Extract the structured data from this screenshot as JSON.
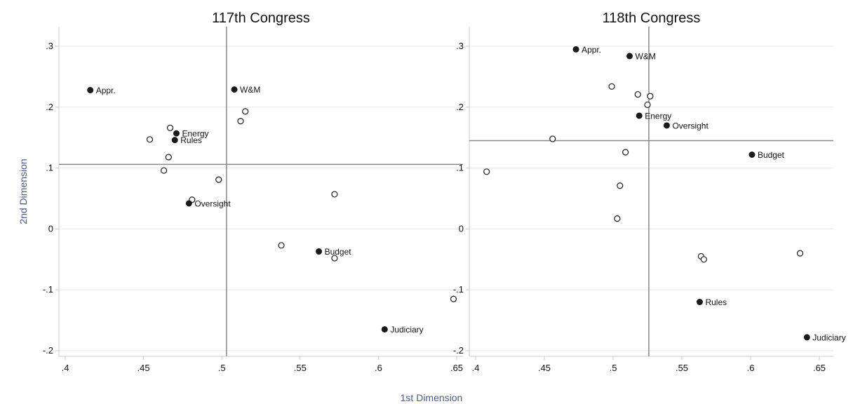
{
  "figure": {
    "xlabel": "1st Dimension",
    "ylabel": "2nd Dimension"
  },
  "colors": {
    "frame": "#c8c8c8",
    "grid": "#e6e6e6",
    "reference_line": "#888888",
    "filled_marker": "#1a1a1a",
    "hollow_marker_stroke": "#1a1a1a",
    "axis_title": "#4a5a8a"
  },
  "chart_data": [
    {
      "type": "scatter",
      "title": "117th Congress",
      "xlim": [
        0.4,
        0.65
      ],
      "ylim": [
        -0.2,
        0.3
      ],
      "x_ticks": [
        ".4",
        ".45",
        ".5",
        ".55",
        ".6",
        ".65"
      ],
      "x_tick_values": [
        0.4,
        0.45,
        0.5,
        0.55,
        0.6,
        0.65
      ],
      "y_ticks": [
        "-.2",
        "-.1",
        "0",
        ".1",
        ".2",
        ".3"
      ],
      "y_tick_values": [
        -0.2,
        -0.1,
        0,
        0.1,
        0.2,
        0.3
      ],
      "grid": true,
      "reference_lines": {
        "x": 0.503,
        "y": 0.106
      },
      "labeled_points": [
        {
          "label": "Appr.",
          "x": 0.416,
          "y": 0.228
        },
        {
          "label": "W&M",
          "x": 0.508,
          "y": 0.229
        },
        {
          "label": "Energy",
          "x": 0.471,
          "y": 0.157
        },
        {
          "label": "Rules",
          "x": 0.47,
          "y": 0.146
        },
        {
          "label": "Oversight",
          "x": 0.479,
          "y": 0.042
        },
        {
          "label": "Budget",
          "x": 0.562,
          "y": -0.037
        },
        {
          "label": "Judiciary",
          "x": 0.604,
          "y": -0.165
        }
      ],
      "unlabeled_points": [
        {
          "x": 0.454,
          "y": 0.147
        },
        {
          "x": 0.467,
          "y": 0.166
        },
        {
          "x": 0.466,
          "y": 0.118
        },
        {
          "x": 0.463,
          "y": 0.096
        },
        {
          "x": 0.498,
          "y": 0.081
        },
        {
          "x": 0.515,
          "y": 0.193
        },
        {
          "x": 0.512,
          "y": 0.177
        },
        {
          "x": 0.481,
          "y": 0.048
        },
        {
          "x": 0.572,
          "y": 0.057
        },
        {
          "x": 0.538,
          "y": -0.027
        },
        {
          "x": 0.572,
          "y": -0.048
        },
        {
          "x": 0.648,
          "y": -0.115
        }
      ]
    },
    {
      "type": "scatter",
      "title": "118th Congress",
      "xlim": [
        0.4,
        0.65
      ],
      "ylim": [
        -0.2,
        0.3
      ],
      "x_ticks": [
        ".4",
        ".45",
        ".5",
        ".55",
        ".6",
        ".65"
      ],
      "x_tick_values": [
        0.4,
        0.45,
        0.5,
        0.55,
        0.6,
        0.65
      ],
      "y_ticks": [
        "-.2",
        "-.1",
        "0",
        ".1",
        ".2",
        ".3"
      ],
      "y_tick_values": [
        -0.2,
        -0.1,
        0,
        0.1,
        0.2,
        0.3
      ],
      "grid": true,
      "reference_lines": {
        "x": 0.526,
        "y": 0.145
      },
      "labeled_points": [
        {
          "label": "Appr.",
          "x": 0.473,
          "y": 0.295
        },
        {
          "label": "W&M",
          "x": 0.512,
          "y": 0.284
        },
        {
          "label": "Energy",
          "x": 0.519,
          "y": 0.186
        },
        {
          "label": "Oversight",
          "x": 0.539,
          "y": 0.17
        },
        {
          "label": "Budget",
          "x": 0.601,
          "y": 0.122
        },
        {
          "label": "Rules",
          "x": 0.563,
          "y": -0.12
        },
        {
          "label": "Judiciary",
          "x": 0.641,
          "y": -0.178
        }
      ],
      "unlabeled_points": [
        {
          "x": 0.499,
          "y": 0.234
        },
        {
          "x": 0.518,
          "y": 0.221
        },
        {
          "x": 0.527,
          "y": 0.218
        },
        {
          "x": 0.525,
          "y": 0.204
        },
        {
          "x": 0.456,
          "y": 0.148
        },
        {
          "x": 0.509,
          "y": 0.126
        },
        {
          "x": 0.408,
          "y": 0.094
        },
        {
          "x": 0.505,
          "y": 0.071
        },
        {
          "x": 0.503,
          "y": 0.017
        },
        {
          "x": 0.564,
          "y": -0.045
        },
        {
          "x": 0.566,
          "y": -0.05
        },
        {
          "x": 0.636,
          "y": -0.04
        }
      ]
    }
  ]
}
